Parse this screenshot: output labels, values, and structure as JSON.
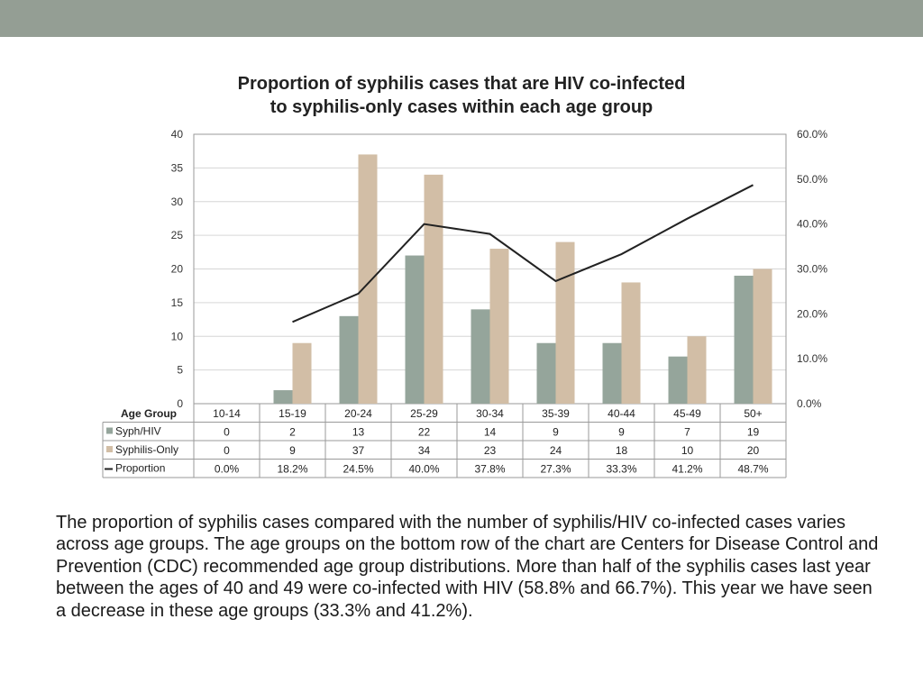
{
  "slide": {
    "description": "The proportion of syphilis cases compared with the number of syphilis/HIV co-infected cases varies across age groups.  The age groups on the bottom row of the chart are Centers for Disease Control and Prevention (CDC) recommended age group distributions. More than half of the syphilis cases last year between the ages of 40 and 49 were co-infected with HIV (58.8% and 66.7%).  This year we have seen a decrease in these age groups (33.3% and 41.2%)."
  },
  "colors": {
    "top_bar": "#949e94",
    "syph_hiv": "#95a59b",
    "syphilis_only": "#d2bea6",
    "proportion_line": "#222222",
    "gridline": "#d6d6d6"
  },
  "chart_data": {
    "type": "bar",
    "title_lines": [
      "Proportion of syphilis cases that are HIV co-infected",
      "to syphilis-only cases within each age group"
    ],
    "xlabel": "Age Group",
    "categories": [
      "10-14",
      "15-19",
      "20-24",
      "25-29",
      "30-34",
      "35-39",
      "40-44",
      "45-49",
      "50+"
    ],
    "series": [
      {
        "name": "Syph/HIV",
        "type": "bar",
        "axis": "left",
        "values": [
          0,
          2,
          13,
          22,
          14,
          9,
          9,
          7,
          19
        ]
      },
      {
        "name": "Syphilis-Only",
        "type": "bar",
        "axis": "left",
        "values": [
          0,
          9,
          37,
          34,
          23,
          24,
          18,
          10,
          20
        ]
      },
      {
        "name": "Proportion",
        "type": "line",
        "axis": "right",
        "values": [
          null,
          0.182,
          0.245,
          0.4,
          0.378,
          0.273,
          0.333,
          0.412,
          0.487
        ]
      }
    ],
    "table_values": {
      "Syph/HIV": [
        "0",
        "2",
        "13",
        "22",
        "14",
        "9",
        "9",
        "7",
        "19"
      ],
      "Syphilis-Only": [
        "0",
        "9",
        "37",
        "34",
        "23",
        "24",
        "18",
        "10",
        "20"
      ],
      "Proportion": [
        "0.0%",
        "18.2%",
        "24.5%",
        "40.0%",
        "37.8%",
        "27.3%",
        "33.3%",
        "41.2%",
        "48.7%"
      ]
    },
    "y_left": {
      "min": 0,
      "max": 40,
      "ticks": [
        "0",
        "5",
        "10",
        "15",
        "20",
        "25",
        "30",
        "35",
        "40"
      ]
    },
    "y_right": {
      "min": 0,
      "max": 0.6,
      "ticks": [
        "0.0%",
        "10.0%",
        "20.0%",
        "30.0%",
        "40.0%",
        "50.0%",
        "60.0%"
      ]
    },
    "grid": true,
    "legend_placement": "data-table"
  }
}
